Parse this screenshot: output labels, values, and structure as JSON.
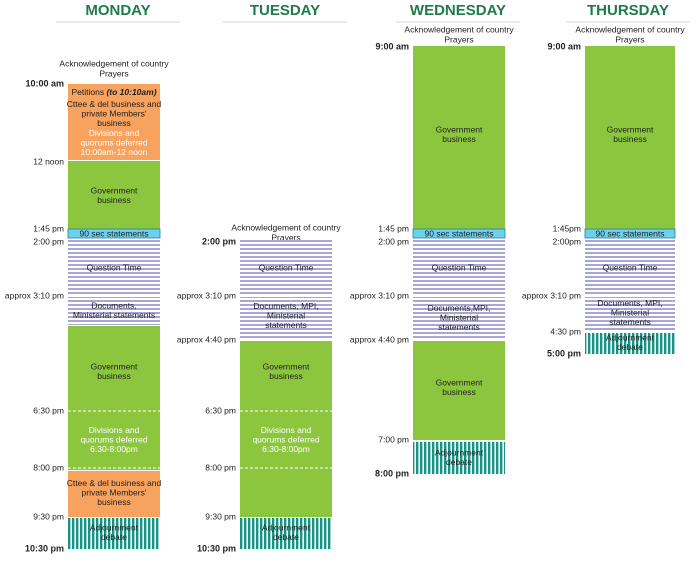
{
  "days": [
    {
      "name": "MONDAY",
      "opening": [
        "Acknowledgement of country",
        "Prayers"
      ],
      "times": [
        "10:00 am",
        "12 noon",
        "1:45 pm",
        "2:00 pm",
        "approx 3:10 pm",
        "6:30 pm",
        "8:00 pm",
        "9:30 pm",
        "10:30 pm"
      ],
      "blocks": [
        {
          "sections": [
            {
              "lines": [
                "Petitions"
              ],
              "note": "(to 10:10am)"
            },
            {
              "lines": [
                "Cttee & del business and",
                "private Members'",
                "business"
              ]
            },
            {
              "lines": [
                "Divisions and",
                "quorums deferred",
                "10:00am-12 noon"
              ]
            }
          ]
        },
        {
          "sections": [
            {
              "lines": [
                "Government",
                "business"
              ]
            }
          ]
        },
        {
          "sections": [
            {
              "lines": [
                "90 sec statements"
              ]
            }
          ]
        },
        {
          "sections": [
            {
              "lines": [
                "Question Time"
              ]
            }
          ]
        },
        {
          "sections": [
            {
              "lines": [
                "Documents,",
                "Ministerial statements"
              ]
            }
          ]
        },
        {
          "sections": [
            {
              "lines": [
                "Government",
                "business"
              ]
            },
            {
              "lines": [
                "Divisions and",
                "quorums deferred",
                "6:30-8:00pm"
              ]
            }
          ]
        },
        {
          "sections": [
            {
              "lines": [
                "Cttee & del business and",
                "private Members'",
                "business"
              ]
            }
          ]
        },
        {
          "sections": [
            {
              "lines": [
                "Adjournment",
                "debate"
              ]
            }
          ]
        }
      ]
    },
    {
      "name": "TUESDAY",
      "opening": [
        "Acknowledgement of country",
        "Prayers"
      ],
      "times": [
        "2:00 pm",
        "approx 3:10 pm",
        "approx 4:40 pm",
        "6:30 pm",
        "8:00 pm",
        "9:30 pm",
        "10:30 pm"
      ],
      "blocks": [
        {
          "sections": [
            {
              "lines": [
                "Question Time"
              ]
            }
          ]
        },
        {
          "sections": [
            {
              "lines": [
                "Documents, MPI,",
                "Ministerial",
                "statements"
              ]
            }
          ]
        },
        {
          "sections": [
            {
              "lines": [
                "Government",
                "business"
              ]
            },
            {
              "lines": [
                "Divisions and",
                "quorums deferred",
                "6:30-8:00pm"
              ]
            }
          ]
        },
        {
          "sections": [
            {
              "lines": [
                "Adjournment",
                "debate"
              ]
            }
          ]
        }
      ]
    },
    {
      "name": "WEDNESDAY",
      "opening": [
        "Acknowledgement of country",
        "Prayers"
      ],
      "times": [
        "9:00 am",
        "1:45 pm",
        "2:00 pm",
        "approx 3:10 pm",
        "approx 4:40 pm",
        "7:00 pm",
        "8:00 pm"
      ],
      "blocks": [
        {
          "sections": [
            {
              "lines": [
                "Government",
                "business"
              ]
            }
          ]
        },
        {
          "sections": [
            {
              "lines": [
                "90 sec statements"
              ]
            }
          ]
        },
        {
          "sections": [
            {
              "lines": [
                "Question Time"
              ]
            }
          ]
        },
        {
          "sections": [
            {
              "lines": [
                "Documents,MPI,",
                "Ministerial",
                "statements"
              ]
            }
          ]
        },
        {
          "sections": [
            {
              "lines": [
                "Government",
                "business"
              ]
            }
          ]
        },
        {
          "sections": [
            {
              "lines": [
                "Adjournment",
                "debate"
              ]
            }
          ]
        }
      ]
    },
    {
      "name": "THURSDAY",
      "opening": [
        "Acknowledgement of country",
        "Prayers"
      ],
      "times": [
        "9:00 am",
        "1:45pm",
        "2:00pm",
        "approx 3:10 pm",
        "4:30 pm",
        "5:00 pm"
      ],
      "blocks": [
        {
          "sections": [
            {
              "lines": [
                "Government",
                "business"
              ]
            }
          ]
        },
        {
          "sections": [
            {
              "lines": [
                "90 sec statements"
              ]
            }
          ]
        },
        {
          "sections": [
            {
              "lines": [
                "Question Time"
              ]
            }
          ]
        },
        {
          "sections": [
            {
              "lines": [
                "Documents, MPI,",
                "Ministerial",
                "statements"
              ]
            }
          ]
        },
        {
          "sections": [
            {
              "lines": [
                "Adjournment",
                "debate"
              ]
            }
          ]
        }
      ]
    }
  ]
}
